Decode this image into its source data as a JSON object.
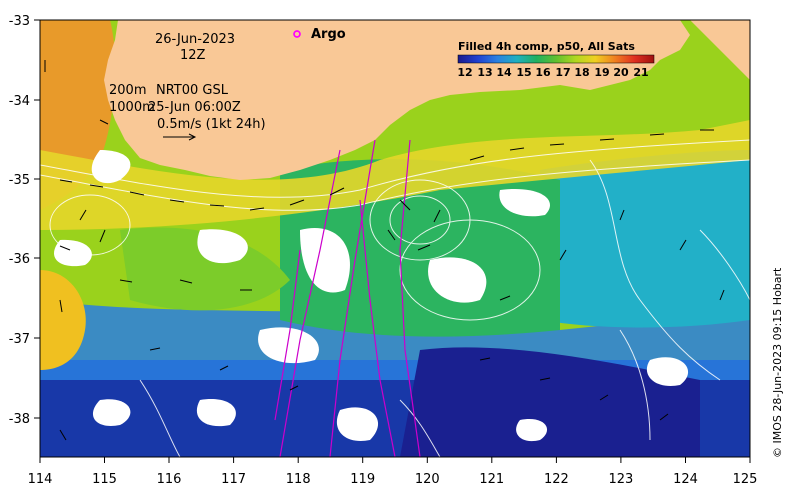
{
  "header": {
    "date": "26-Jun-2023",
    "time": "12Z",
    "argo_label": "Argo",
    "contour_line1": "200m",
    "contour_line1b": "NRT00 GSL",
    "contour_line2": "1000m",
    "contour_line2b": "25-Jun 06:00Z",
    "vector_scale": "0.5m/s (1kt 24h)"
  },
  "colorbar": {
    "title": "Filled 4h comp, p50, All Sats",
    "ticks": [
      "12",
      "13",
      "14",
      "15",
      "16",
      "17",
      "18",
      "19",
      "20",
      "21"
    ],
    "colors": [
      "#1a1a8c",
      "#2040d0",
      "#2a80e0",
      "#20b0c0",
      "#20b060",
      "#60c030",
      "#b0d820",
      "#f0d020",
      "#f08020",
      "#e03020",
      "#a01010"
    ]
  },
  "axes": {
    "x_ticks": [
      "114",
      "115",
      "116",
      "117",
      "118",
      "119",
      "120",
      "121",
      "122",
      "123",
      "124",
      "125"
    ],
    "y_ticks": [
      "-33",
      "-34",
      "-35",
      "-36",
      "-37",
      "-38"
    ]
  },
  "credit": "© IMOS 28-Jun-2023 09:15 Hobart",
  "colors": {
    "land": "#f9c896",
    "argo_marker": "#ff00ff",
    "track": "#cc00cc",
    "contour": "#ffffff"
  }
}
